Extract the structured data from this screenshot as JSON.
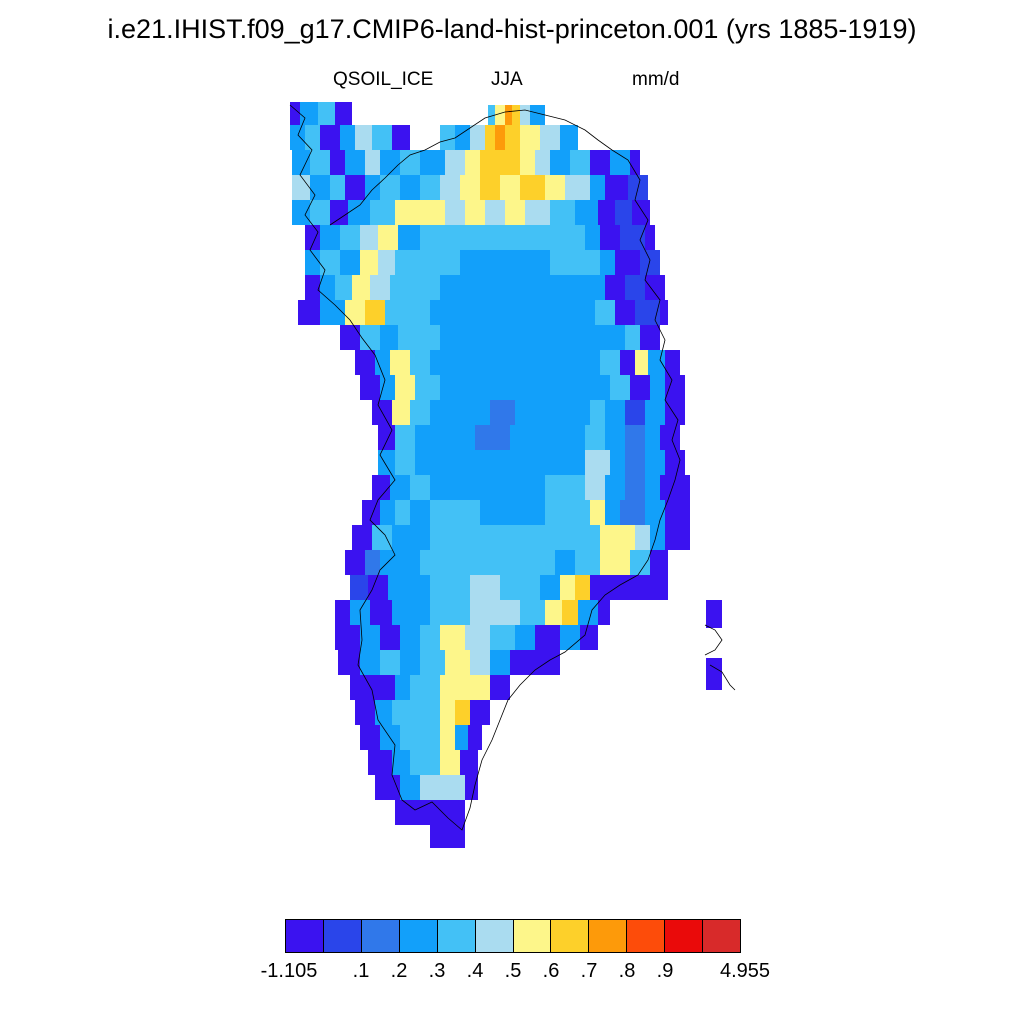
{
  "title": "i.e21.IHIST.f09_g17.CMIP6-land-hist-princeton.001 (yrs 1885-1919)",
  "subtitle": {
    "variable": "QSOIL_ICE",
    "season": "JJA",
    "units": "mm/d"
  },
  "map": {
    "region": "Greenland",
    "projection": "polar stereographic",
    "coastline_color": "#000000"
  },
  "colorbar": {
    "colors": [
      "#3b12f0",
      "#2a45ea",
      "#3078ea",
      "#12a0fa",
      "#43c1f6",
      "#aadcf0",
      "#fdf68a",
      "#fdd02a",
      "#fd9a0a",
      "#fd4c0a",
      "#ea0a0a",
      "#d82a2a"
    ],
    "labels": [
      "-1.105",
      ".1",
      ".2",
      ".3",
      ".4",
      ".5",
      ".6",
      ".7",
      ".8",
      ".9",
      "4.955"
    ]
  }
}
